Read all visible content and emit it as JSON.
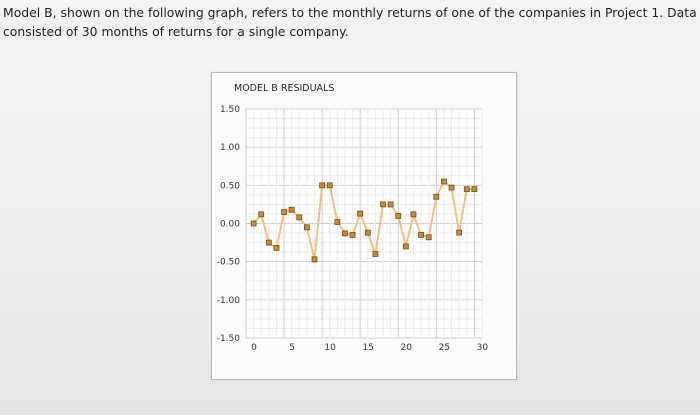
{
  "question": {
    "line1": "Model B, shown on the following graph, refers to the monthly returns of one of the companies in Project 1. Data",
    "line2": "consisted of 30 months of returns for a single company."
  },
  "colors": {
    "line": "#f0c080",
    "marker_fill": "#c98a3c",
    "marker_stroke": "#7a4d18",
    "grid": "#d6d6d6",
    "plot_bg": "#ffffff"
  },
  "chart_data": {
    "type": "line",
    "title": "MODEL B RESIDUALS",
    "xlabel": "",
    "ylabel": "",
    "xlim": [
      0,
      31
    ],
    "ylim": [
      -1.5,
      1.5
    ],
    "x_ticks": [
      0,
      5,
      10,
      15,
      20,
      25,
      30
    ],
    "x_tick_labels": [
      "0",
      "5",
      "10",
      "15",
      "20",
      "25",
      "30"
    ],
    "y_ticks": [
      1.5,
      1.0,
      0.5,
      0.0,
      -0.5,
      -1.0,
      -1.5
    ],
    "y_tick_labels": [
      "1.50",
      "1.00",
      "0.50",
      "0.00",
      "-0.50",
      "-1.00",
      "-1.50"
    ],
    "grid": true,
    "marker": "square",
    "series": [
      {
        "x": [
          1,
          2,
          3,
          4,
          5,
          6,
          7,
          8,
          9,
          10,
          11,
          12,
          13,
          14,
          15,
          16,
          17,
          18,
          19,
          20,
          21,
          22,
          23,
          24,
          25,
          26,
          27,
          28,
          29,
          30
        ],
        "values": [
          0.0,
          0.12,
          -0.25,
          -0.32,
          0.15,
          0.18,
          0.08,
          -0.05,
          -0.47,
          0.5,
          0.5,
          0.02,
          -0.13,
          -0.15,
          0.13,
          -0.12,
          -0.4,
          0.25,
          0.25,
          0.1,
          -0.3,
          0.12,
          -0.15,
          -0.18,
          0.35,
          0.55,
          0.47,
          -0.12,
          0.45,
          0.45
        ]
      }
    ]
  }
}
